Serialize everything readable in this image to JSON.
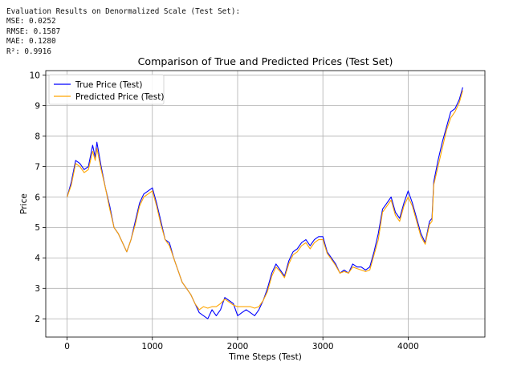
{
  "console": {
    "lines": [
      "Evaluation Results on Denormalized Scale (Test Set):",
      "MSE: 0.0252",
      "RMSE: 0.1587",
      "MAE: 0.1280",
      "R²: 0.9916"
    ]
  },
  "chart_data": {
    "type": "line",
    "title": "Comparison of True and Predicted Prices (Test Set)",
    "xlabel": "Time Steps (Test)",
    "ylabel": "Price",
    "xlim": [
      -250,
      4900
    ],
    "ylim": [
      1.4,
      10.15
    ],
    "xticks": [
      0,
      1000,
      2000,
      3000,
      4000
    ],
    "yticks": [
      2,
      3,
      4,
      5,
      6,
      7,
      8,
      9,
      10
    ],
    "grid": true,
    "legend_position": "upper-left",
    "colors": {
      "true": "#0000ff",
      "predicted": "#ffa500"
    },
    "series": [
      {
        "name": "True Price (Test)",
        "color": "#0000ff",
        "x": [
          0,
          50,
          100,
          150,
          200,
          250,
          300,
          330,
          350,
          400,
          450,
          500,
          550,
          600,
          650,
          700,
          750,
          800,
          850,
          900,
          950,
          1000,
          1050,
          1100,
          1150,
          1200,
          1250,
          1300,
          1350,
          1400,
          1450,
          1500,
          1550,
          1600,
          1650,
          1700,
          1750,
          1800,
          1850,
          1900,
          1950,
          2000,
          2050,
          2100,
          2150,
          2200,
          2250,
          2300,
          2350,
          2400,
          2450,
          2500,
          2550,
          2600,
          2650,
          2700,
          2750,
          2800,
          2850,
          2900,
          2950,
          3000,
          3050,
          3100,
          3150,
          3200,
          3250,
          3300,
          3350,
          3400,
          3450,
          3500,
          3550,
          3600,
          3650,
          3700,
          3750,
          3800,
          3850,
          3900,
          3950,
          4000,
          4050,
          4100,
          4150,
          4200,
          4250,
          4280,
          4300,
          4350,
          4400,
          4450,
          4500,
          4550,
          4600,
          4640
        ],
        "y": [
          6.0,
          6.5,
          7.2,
          7.1,
          6.9,
          7.0,
          7.7,
          7.3,
          7.8,
          7.0,
          6.3,
          5.7,
          5.0,
          4.8,
          4.5,
          4.2,
          4.6,
          5.2,
          5.8,
          6.1,
          6.2,
          6.3,
          5.8,
          5.2,
          4.6,
          4.5,
          4.0,
          3.6,
          3.2,
          3.0,
          2.8,
          2.5,
          2.2,
          2.1,
          2.0,
          2.3,
          2.1,
          2.3,
          2.7,
          2.6,
          2.5,
          2.1,
          2.2,
          2.3,
          2.2,
          2.1,
          2.3,
          2.6,
          3.0,
          3.5,
          3.8,
          3.6,
          3.4,
          3.9,
          4.2,
          4.3,
          4.5,
          4.6,
          4.4,
          4.6,
          4.7,
          4.7,
          4.2,
          4.0,
          3.8,
          3.5,
          3.6,
          3.5,
          3.8,
          3.7,
          3.7,
          3.6,
          3.7,
          4.2,
          4.8,
          5.6,
          5.8,
          6.0,
          5.5,
          5.3,
          5.8,
          6.2,
          5.8,
          5.3,
          4.8,
          4.5,
          5.2,
          5.3,
          6.5,
          7.2,
          7.8,
          8.3,
          8.8,
          8.9,
          9.2,
          9.6
        ]
      },
      {
        "name": "Predicted Price (Test)",
        "color": "#ffa500",
        "x": [
          0,
          50,
          100,
          150,
          200,
          250,
          300,
          330,
          350,
          400,
          450,
          500,
          550,
          600,
          650,
          700,
          750,
          800,
          850,
          900,
          950,
          1000,
          1050,
          1100,
          1150,
          1200,
          1250,
          1300,
          1350,
          1400,
          1450,
          1500,
          1550,
          1600,
          1650,
          1700,
          1750,
          1800,
          1850,
          1900,
          1950,
          2000,
          2050,
          2100,
          2150,
          2200,
          2250,
          2300,
          2350,
          2400,
          2450,
          2500,
          2550,
          2600,
          2650,
          2700,
          2750,
          2800,
          2850,
          2900,
          2950,
          3000,
          3050,
          3100,
          3150,
          3200,
          3250,
          3300,
          3350,
          3400,
          3450,
          3500,
          3550,
          3600,
          3650,
          3700,
          3750,
          3800,
          3850,
          3900,
          3950,
          4000,
          4050,
          4100,
          4150,
          4200,
          4250,
          4280,
          4300,
          4350,
          4400,
          4450,
          4500,
          4550,
          4600,
          4640
        ],
        "y": [
          6.0,
          6.4,
          7.1,
          7.0,
          6.8,
          6.9,
          7.5,
          7.2,
          7.6,
          6.9,
          6.3,
          5.6,
          5.0,
          4.8,
          4.5,
          4.2,
          4.6,
          5.1,
          5.7,
          6.0,
          6.1,
          6.2,
          5.7,
          5.1,
          4.6,
          4.4,
          4.0,
          3.6,
          3.2,
          3.0,
          2.8,
          2.5,
          2.3,
          2.4,
          2.35,
          2.4,
          2.4,
          2.5,
          2.65,
          2.55,
          2.45,
          2.4,
          2.4,
          2.4,
          2.4,
          2.35,
          2.4,
          2.6,
          2.9,
          3.4,
          3.7,
          3.55,
          3.35,
          3.8,
          4.1,
          4.2,
          4.4,
          4.5,
          4.3,
          4.5,
          4.6,
          4.6,
          4.15,
          3.95,
          3.75,
          3.5,
          3.55,
          3.5,
          3.7,
          3.65,
          3.6,
          3.55,
          3.6,
          4.1,
          4.6,
          5.5,
          5.7,
          5.9,
          5.4,
          5.2,
          5.7,
          6.0,
          5.7,
          5.2,
          4.7,
          4.45,
          5.1,
          5.2,
          6.4,
          7.0,
          7.6,
          8.2,
          8.6,
          8.8,
          9.1,
          9.5
        ]
      }
    ]
  }
}
